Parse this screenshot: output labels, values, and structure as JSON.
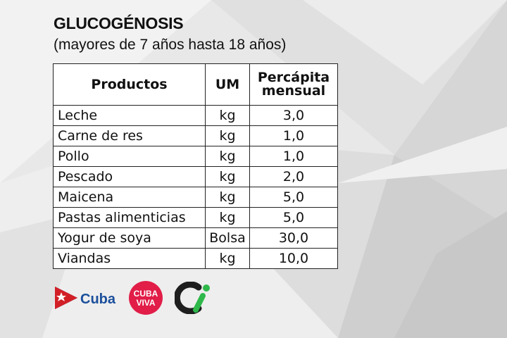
{
  "title": "GLUCOGÉNOSIS",
  "subtitle": "(mayores de 7 años hasta 18 años)",
  "table": {
    "headers": {
      "product": "Productos",
      "unit": "UM",
      "per_capita_line1": "Percápita",
      "per_capita_line2": "mensual"
    },
    "rows": [
      {
        "product": "Leche",
        "unit": "kg",
        "amount": "3,0"
      },
      {
        "product": "Carne de res",
        "unit": "kg",
        "amount": "1,0"
      },
      {
        "product": "Pollo",
        "unit": "kg",
        "amount": "1,0"
      },
      {
        "product": "Pescado",
        "unit": "kg",
        "amount": "2,0"
      },
      {
        "product": "Maicena",
        "unit": "kg",
        "amount": "5,0"
      },
      {
        "product": "Pastas alimenticias",
        "unit": "kg",
        "amount": "5,0"
      },
      {
        "product": "Yogur de soya",
        "unit": "Bolsa",
        "amount": "30,0"
      },
      {
        "product": "Viandas",
        "unit": "kg",
        "amount": "10,0"
      }
    ]
  },
  "logos": {
    "cuba": {
      "text": "Cuba",
      "text_color": "#1b4f9c",
      "flag_red": "#d21f26",
      "flag_blue": "#1b4f9c"
    },
    "cubaviva": {
      "line1": "CUBA",
      "line2": "VIVA",
      "color": "#e11d48"
    },
    "ci": {
      "dark": "#1e1e1e",
      "green": "#2eb84a"
    }
  }
}
